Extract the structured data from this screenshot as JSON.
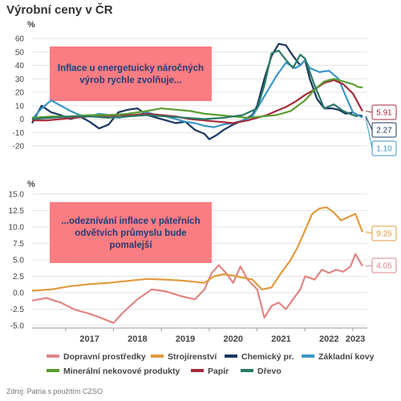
{
  "title": "Výrobní ceny v ČR",
  "source": "Zdroj: Patria s použitím CZSO",
  "chart_data": [
    {
      "type": "line",
      "unit_label": "%",
      "ylim": [
        -20,
        60
      ],
      "yticks": [
        -20,
        -10,
        0,
        10,
        20,
        30,
        40,
        50,
        60
      ],
      "xlim": [
        2016.3,
        2023.3
      ],
      "annotation": "Inflace u energetuicky náročných výrob rychle zvolňuje...",
      "annotation_color": "#f97d82",
      "end_labels": [
        {
          "text": "5.91",
          "y": 5.91,
          "color": "#a52a3a"
        },
        {
          "text": "2.27",
          "y": 2.27,
          "color": "#1a3760"
        },
        {
          "text": "1.10",
          "y": 1.1,
          "color": "#3a97c6"
        }
      ],
      "series": [
        {
          "name": "Chemický pr.",
          "color": "#1a3760",
          "x": [
            2016.3,
            2016.5,
            2016.7,
            2016.9,
            2017.1,
            2017.3,
            2017.5,
            2017.7,
            2017.9,
            2018.1,
            2018.3,
            2018.5,
            2018.7,
            2018.9,
            2019.1,
            2019.3,
            2019.5,
            2019.7,
            2019.9,
            2020.0,
            2020.15,
            2020.3,
            2020.5,
            2020.7,
            2020.9,
            2021.0,
            2021.15,
            2021.3,
            2021.45,
            2021.6,
            2021.75,
            2021.9,
            2022.0,
            2022.1,
            2022.25,
            2022.4,
            2022.55,
            2022.7,
            2022.85,
            2023.0,
            2023.1,
            2023.2
          ],
          "y": [
            -3,
            10,
            5,
            3,
            0,
            2,
            -2,
            -7,
            -4,
            5,
            7,
            8,
            3,
            1,
            -1,
            -3,
            -2,
            -8,
            -11,
            -15,
            -12,
            -8,
            -4,
            -1,
            3,
            10,
            30,
            47,
            56,
            55,
            47,
            40,
            44,
            30,
            15,
            8,
            8,
            7,
            4,
            5,
            3,
            2.27
          ]
        },
        {
          "name": "Základní kovy",
          "color": "#3a97c6",
          "x": [
            2016.3,
            2016.5,
            2016.7,
            2016.9,
            2017.1,
            2017.3,
            2017.5,
            2017.7,
            2017.9,
            2018.1,
            2018.3,
            2018.5,
            2018.7,
            2018.9,
            2019.1,
            2019.3,
            2019.5,
            2019.7,
            2019.9,
            2020.1,
            2020.3,
            2020.5,
            2020.7,
            2020.9,
            2021.0,
            2021.2,
            2021.4,
            2021.6,
            2021.8,
            2021.9,
            2022.0,
            2022.1,
            2022.3,
            2022.5,
            2022.7,
            2022.85,
            2023.0,
            2023.2
          ],
          "y": [
            0,
            8,
            14,
            10,
            6,
            3,
            2,
            4,
            3,
            1,
            2,
            3,
            5,
            3,
            2,
            0,
            -2,
            -3,
            -5,
            -6,
            -4,
            -3,
            -1,
            2,
            8,
            20,
            32,
            42,
            38,
            40,
            44,
            38,
            35,
            36,
            30,
            17,
            5,
            1.1
          ]
        },
        {
          "name": "Papír",
          "color": "#a52a3a",
          "x": [
            2016.3,
            2016.6,
            2016.9,
            2017.2,
            2017.5,
            2017.8,
            2018.1,
            2018.4,
            2018.7,
            2019.0,
            2019.3,
            2019.6,
            2019.9,
            2020.2,
            2020.5,
            2020.8,
            2021.0,
            2021.2,
            2021.4,
            2021.6,
            2021.8,
            2022.0,
            2022.2,
            2022.4,
            2022.6,
            2022.8,
            2023.0,
            2023.2
          ],
          "y": [
            -1,
            -1,
            0,
            1,
            2,
            2,
            3,
            3,
            4,
            3,
            2,
            0,
            -1,
            -2,
            -3,
            -1,
            1,
            3,
            6,
            9,
            13,
            18,
            22,
            27,
            29,
            26,
            19,
            5.91
          ]
        },
        {
          "name": "Minerální nekovové produkty",
          "color": "#5a9e2f",
          "x": [
            2016.3,
            2016.7,
            2017.1,
            2017.5,
            2017.9,
            2018.3,
            2018.7,
            2019.0,
            2019.3,
            2019.6,
            2019.9,
            2020.2,
            2020.5,
            2020.8,
            2021.1,
            2021.4,
            2021.7,
            2022.0,
            2022.2,
            2022.4,
            2022.6,
            2022.8,
            2023.0,
            2023.1,
            2023.2
          ],
          "y": [
            1,
            2,
            2,
            3,
            3,
            4,
            6,
            8,
            7,
            6,
            4,
            3,
            2,
            1,
            2,
            3,
            6,
            14,
            22,
            28,
            30,
            28,
            26,
            24,
            23.5
          ]
        },
        {
          "name": "Dřevo",
          "color": "#2a7a65",
          "x": [
            2016.3,
            2016.7,
            2017.1,
            2017.5,
            2017.9,
            2018.3,
            2018.7,
            2019.1,
            2019.5,
            2019.9,
            2020.3,
            2020.7,
            2021.0,
            2021.15,
            2021.3,
            2021.45,
            2021.6,
            2021.75,
            2021.9,
            2022.0,
            2022.2,
            2022.4,
            2022.6,
            2022.8,
            2023.0,
            2023.1
          ],
          "y": [
            0,
            1,
            2,
            2,
            1,
            2,
            3,
            2,
            1,
            0,
            1,
            3,
            8,
            25,
            49,
            51,
            44,
            38,
            48,
            45,
            25,
            8,
            11,
            6,
            3,
            2
          ]
        }
      ]
    },
    {
      "type": "line",
      "unit_label": "%",
      "ylim": [
        -5,
        15
      ],
      "yticks": [
        -5.0,
        -2.5,
        0.0,
        2.5,
        5.0,
        7.5,
        10.0,
        12.5,
        15.0
      ],
      "xlim": [
        2016.3,
        2023.3
      ],
      "xticks": [
        "2017",
        "2018",
        "2019",
        "2020",
        "2021",
        "2022",
        "2023"
      ],
      "annotation": "...odeznívání inflace v páteřních odvětvích průmyslu bude pomalejší",
      "annotation_color": "#f97d82",
      "end_labels": [
        {
          "text": "9.25",
          "y": 9.25,
          "color": "#e09a3e"
        },
        {
          "text": "4.05",
          "y": 4.05,
          "color": "#e08585"
        }
      ],
      "series": [
        {
          "name": "Dopravní prostředky",
          "color": "#e08585",
          "x": [
            2016.3,
            2016.6,
            2016.9,
            2017.2,
            2017.5,
            2017.8,
            2018.0,
            2018.2,
            2018.5,
            2018.8,
            2019.1,
            2019.4,
            2019.7,
            2019.9,
            2020.05,
            2020.2,
            2020.35,
            2020.5,
            2020.65,
            2020.8,
            2021.0,
            2021.15,
            2021.3,
            2021.45,
            2021.6,
            2021.75,
            2021.9,
            2022.0,
            2022.2,
            2022.35,
            2022.5,
            2022.65,
            2022.8,
            2022.95,
            2023.05,
            2023.2
          ],
          "y": [
            -1.2,
            -0.8,
            -1.5,
            -2.6,
            -3.2,
            -4.0,
            -4.6,
            -3.0,
            -1.0,
            0.5,
            0.2,
            -0.5,
            -1.0,
            0.5,
            3.0,
            4.2,
            3.0,
            1.5,
            4.0,
            2.0,
            0.5,
            -3.8,
            -2.0,
            -1.5,
            -2.5,
            -1.0,
            0.5,
            2.5,
            2.0,
            3.5,
            3.0,
            3.5,
            3.2,
            4.0,
            5.9,
            4.05
          ]
        },
        {
          "name": "Strojírenství",
          "color": "#e09a3e",
          "x": [
            2016.3,
            2016.7,
            2017.1,
            2017.5,
            2017.9,
            2018.3,
            2018.7,
            2019.1,
            2019.5,
            2019.9,
            2020.1,
            2020.3,
            2020.5,
            2020.7,
            2020.9,
            2021.1,
            2021.3,
            2021.5,
            2021.7,
            2021.85,
            2022.0,
            2022.15,
            2022.3,
            2022.45,
            2022.6,
            2022.75,
            2022.9,
            2023.05,
            2023.2
          ],
          "y": [
            0.3,
            0.5,
            1.0,
            1.3,
            1.5,
            1.8,
            2.1,
            2.0,
            1.8,
            1.5,
            2.5,
            2.8,
            2.6,
            2.3,
            2.0,
            0.5,
            0.8,
            3.0,
            5.0,
            7.0,
            9.5,
            12.0,
            12.8,
            13.0,
            12.2,
            11.0,
            11.5,
            12.0,
            9.25
          ]
        }
      ]
    }
  ],
  "legend": [
    {
      "label": "Dopravní prostředky",
      "color": "#e08585"
    },
    {
      "label": "Strojírenství",
      "color": "#e09a3e"
    },
    {
      "label": "Chemický pr.",
      "color": "#1a3760"
    },
    {
      "label": "Základní kovy",
      "color": "#3a97c6"
    },
    {
      "label": "Minerální nekovové produkty",
      "color": "#5a9e2f"
    },
    {
      "label": "Papír",
      "color": "#a52a3a"
    },
    {
      "label": "Dřevo",
      "color": "#2a7a65"
    }
  ]
}
